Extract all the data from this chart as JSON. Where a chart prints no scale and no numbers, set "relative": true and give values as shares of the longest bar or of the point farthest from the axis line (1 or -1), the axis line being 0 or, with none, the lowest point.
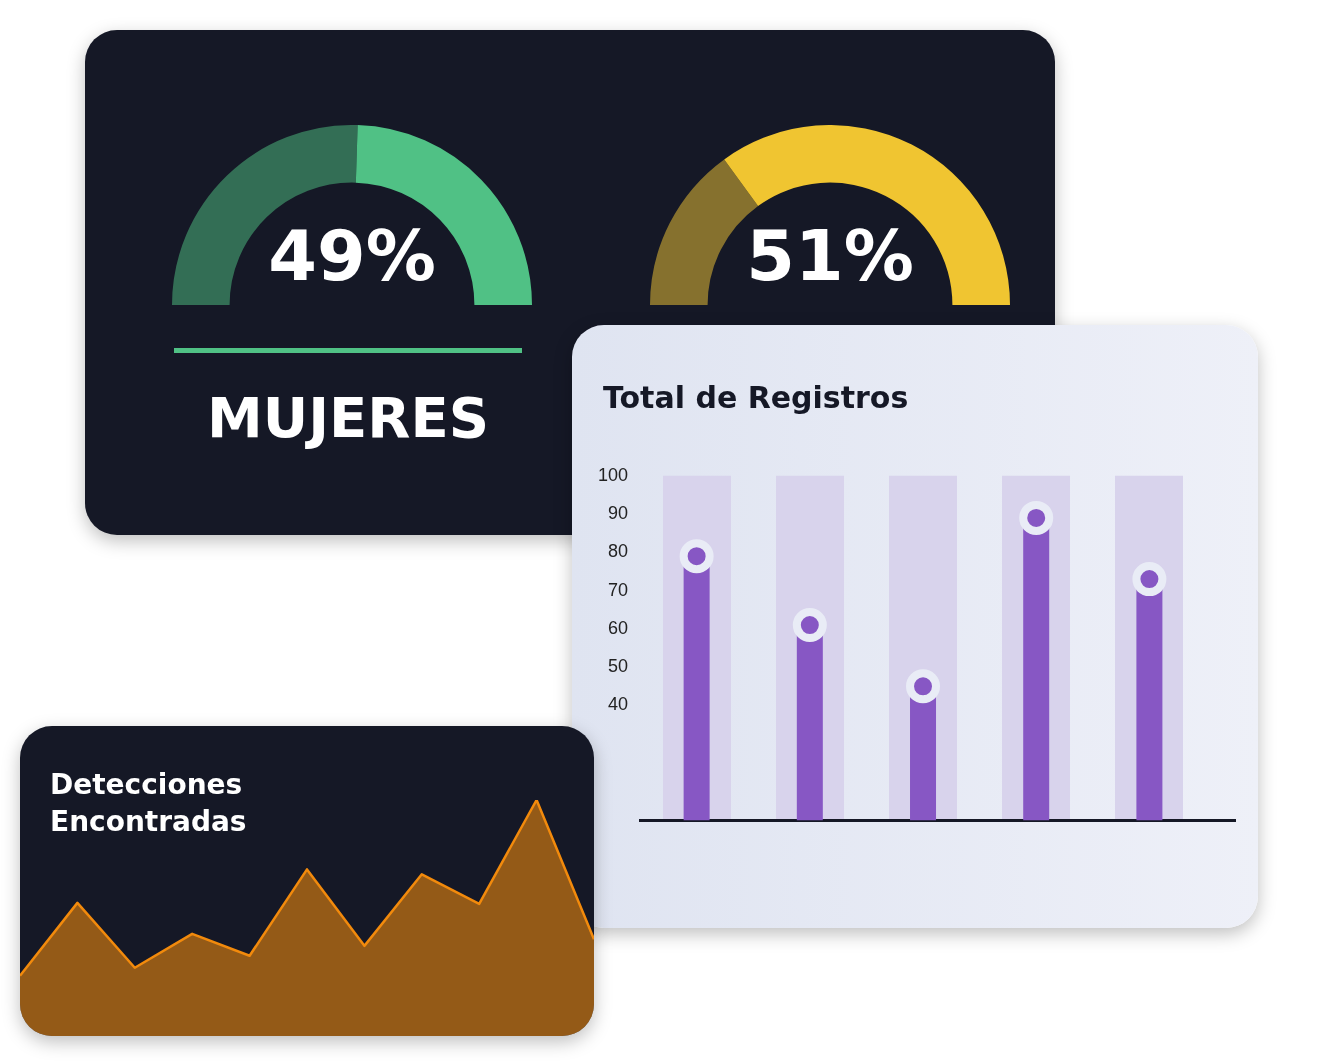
{
  "chart_data": [
    {
      "type": "donut",
      "title": "MUJERES",
      "categories": [
        null,
        null
      ],
      "values": [
        51,
        49
      ],
      "colors": [
        "#336e55",
        "#50c185"
      ],
      "annotations": [
        "49%"
      ]
    },
    {
      "type": "donut",
      "categories": [
        null,
        null
      ],
      "values": [
        30,
        70
      ],
      "colors": [
        "#86712e",
        "#f0c531"
      ],
      "annotations": [
        "51%"
      ]
    },
    {
      "type": "lollipop",
      "title": "Total de Registros",
      "categories": [
        null,
        null,
        null,
        null,
        null
      ],
      "values": [
        79,
        61,
        45,
        89,
        73
      ],
      "color": "#8757c4",
      "ylim": [
        10,
        100
      ],
      "yticks": [
        40,
        50,
        60,
        70,
        80,
        90,
        100
      ],
      "grid": "x"
    },
    {
      "type": "area",
      "title": "Detecciones Encontradas",
      "categories": [
        null,
        null,
        null,
        null,
        null,
        null,
        null,
        null,
        null,
        null,
        null
      ],
      "values": [
        0.255,
        0.564,
        0.289,
        0.433,
        0.34,
        0.706,
        0.382,
        0.685,
        0.56,
        1,
        0.41
      ],
      "color": "#f28a0c",
      "relative": true
    }
  ]
}
